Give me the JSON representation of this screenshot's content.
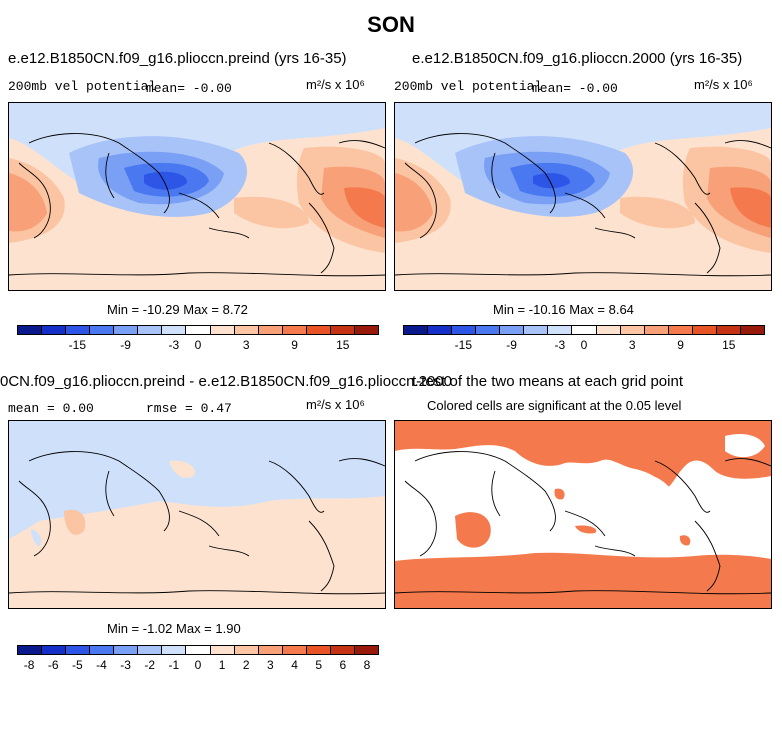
{
  "title": "SON",
  "panels": [
    {
      "id": "preind",
      "title": "e.e12.B1850CN.f09_g16.plioccn.preind (yrs 16-35)",
      "left_label": "200mb vel potential",
      "mean_text": "mean=  -0.00",
      "units": "m²/s x 10⁶",
      "minmax": "Min = -10.29 Max =   8.72"
    },
    {
      "id": "2000",
      "title": "e.e12.B1850CN.f09_g16.plioccn.2000 (yrs 16-35)",
      "left_label": "200mb vel potential",
      "mean_text": "mean=  -0.00",
      "units": "m²/s x 10⁶",
      "minmax": "Min = -10.16 Max =   8.64"
    },
    {
      "id": "diff",
      "title": "0CN.f09_g16.plioccn.preind - e.e12.B1850CN.f09_g16.plioccn.2000",
      "mean_text": "mean =   0.00",
      "rmse_text": "rmse =   0.47",
      "units": "m²/s x 10⁶",
      "minmax": "Min =  -1.02 Max =   1.90"
    },
    {
      "id": "ttest",
      "title": "t-test of the two means at each grid point",
      "subtitle": "Colored cells are significant at the 0.05 level"
    }
  ],
  "colorbars": {
    "top": {
      "colors": [
        "#0a1a8c",
        "#1430c8",
        "#2d55e6",
        "#4a78f0",
        "#7aa0f5",
        "#a8c3f8",
        "#cfe0fb",
        "#ffffff",
        "#fde3cf",
        "#fbc5a3",
        "#f8a077",
        "#f47a4d",
        "#e85426",
        "#c53214",
        "#981a0a"
      ],
      "labels": [
        "-15",
        "-9",
        "-3",
        "0",
        "3",
        "9",
        "15"
      ]
    },
    "diff": {
      "colors": [
        "#0a1a8c",
        "#1430c8",
        "#2d55e6",
        "#4a78f0",
        "#7aa0f5",
        "#a8c3f8",
        "#cfe0fb",
        "#ffffff",
        "#fde3cf",
        "#fbc5a3",
        "#f8a077",
        "#f47a4d",
        "#e85426",
        "#c53214",
        "#981a0a"
      ],
      "labels": [
        "-8",
        "-6",
        "-5",
        "-4",
        "-3",
        "-2",
        "-1",
        "0",
        "1",
        "2",
        "3",
        "4",
        "5",
        "6",
        "8"
      ]
    }
  },
  "chart_data": [
    {
      "type": "heatmap",
      "title": "e.e12.B1850CN.f09_g16.plioccn.preind (yrs 16-35)",
      "variable": "200mb vel potential",
      "units": "m2/s x 10^6",
      "season": "SON",
      "mean": -0.0,
      "min": -10.29,
      "max": 8.72,
      "colorbar_levels": [
        -15,
        -9,
        -3,
        0,
        3,
        9,
        15
      ]
    },
    {
      "type": "heatmap",
      "title": "e.e12.B1850CN.f09_g16.plioccn.2000 (yrs 16-35)",
      "variable": "200mb vel potential",
      "units": "m2/s x 10^6",
      "season": "SON",
      "mean": -0.0,
      "min": -10.16,
      "max": 8.64,
      "colorbar_levels": [
        -15,
        -9,
        -3,
        0,
        3,
        9,
        15
      ]
    },
    {
      "type": "heatmap",
      "title": "preind - 2000 difference",
      "units": "m2/s x 10^6",
      "mean": 0.0,
      "rmse": 0.47,
      "min": -1.02,
      "max": 1.9,
      "colorbar_levels": [
        -8,
        -6,
        -5,
        -4,
        -3,
        -2,
        -1,
        0,
        1,
        2,
        3,
        4,
        5,
        6,
        8
      ]
    },
    {
      "type": "heatmap",
      "title": "t-test of the two means at each grid point",
      "note": "Colored cells are significant at the 0.05 level",
      "significance_level": 0.05
    }
  ]
}
